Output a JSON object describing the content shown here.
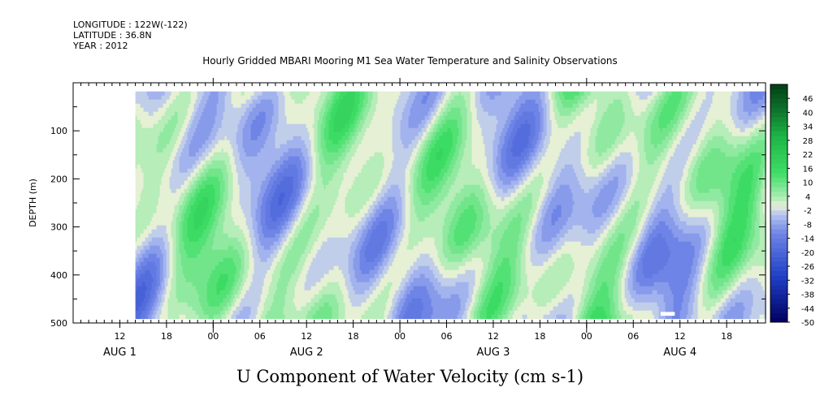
{
  "header": {
    "longitude": "LONGITUDE : 122W(-122)",
    "latitude": "LATITUDE : 36.8N",
    "year": "YEAR : 2012"
  },
  "chart_data": {
    "type": "heatmap",
    "title": "Hourly Gridded MBARI Mooring M1 Sea Water Temperature and Salinity Observations",
    "xlabel": "U Component of Water Velocity (cm s-1)",
    "ylabel": "DEPTH (m)",
    "x_unit": "hours since AUG 1 00:00 (2012)",
    "xlim": [
      6,
      95
    ],
    "data_x_start": 14,
    "ylim": [
      500,
      0
    ],
    "data_y_range": [
      18,
      485
    ],
    "y_ticks": [
      100,
      200,
      300,
      400,
      500
    ],
    "x_hour_ticks": [
      {
        "x": 12,
        "label": "12"
      },
      {
        "x": 18,
        "label": "18"
      },
      {
        "x": 24,
        "label": "00"
      },
      {
        "x": 30,
        "label": "06"
      },
      {
        "x": 36,
        "label": "12"
      },
      {
        "x": 42,
        "label": "18"
      },
      {
        "x": 48,
        "label": "00"
      },
      {
        "x": 54,
        "label": "06"
      },
      {
        "x": 60,
        "label": "12"
      },
      {
        "x": 66,
        "label": "18"
      },
      {
        "x": 72,
        "label": "00"
      },
      {
        "x": 78,
        "label": "06"
      },
      {
        "x": 84,
        "label": "12"
      },
      {
        "x": 90,
        "label": "18"
      }
    ],
    "x_day_labels": [
      {
        "x": 12,
        "label": "AUG  1"
      },
      {
        "x": 36,
        "label": "AUG  2"
      },
      {
        "x": 60,
        "label": "AUG  3"
      },
      {
        "x": 84,
        "label": "AUG  4"
      }
    ],
    "colorbar": {
      "levels": [
        46,
        40,
        34,
        28,
        22,
        16,
        10,
        4,
        -2,
        -8,
        -14,
        -20,
        -26,
        -32,
        -38,
        -44,
        -50
      ],
      "range": [
        -50,
        52
      ],
      "colors": {
        "-50": "#000060",
        "-30": "#2040c8",
        "-12": "#6e84e6",
        "-4": "#b4c2f0",
        "0": "#e6f0d4",
        "4": "#a6ecb0",
        "14": "#3ede66",
        "30": "#1cb446",
        "40": "#10782e",
        "52": "#004014"
      }
    }
  }
}
